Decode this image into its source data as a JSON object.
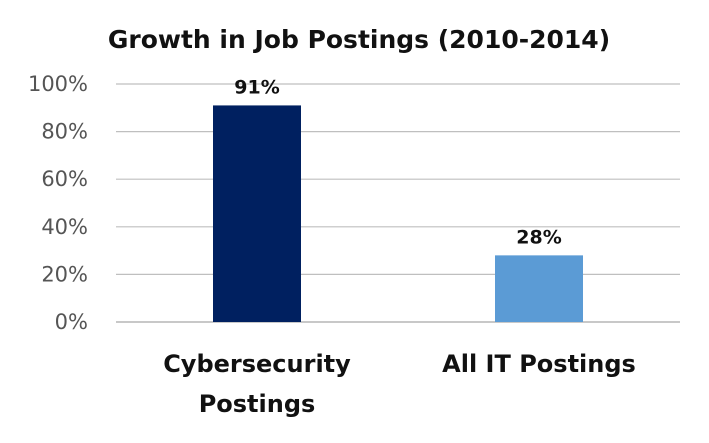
{
  "chart_data": {
    "type": "bar",
    "title": "Growth in Job Postings (2010-2014)",
    "categories": [
      [
        "Cybersecurity",
        "Postings"
      ],
      [
        "All IT Postings"
      ]
    ],
    "values": [
      91,
      28
    ],
    "data_labels": [
      "91%",
      "28%"
    ],
    "ylim": [
      0,
      100
    ],
    "yticks": [
      0,
      20,
      40,
      60,
      80,
      100
    ],
    "ytick_labels": [
      "0%",
      "20%",
      "40%",
      "60%",
      "80%",
      "100%"
    ],
    "grid": true,
    "legend": "none",
    "colors": [
      "#002060",
      "#5b9bd5"
    ]
  }
}
